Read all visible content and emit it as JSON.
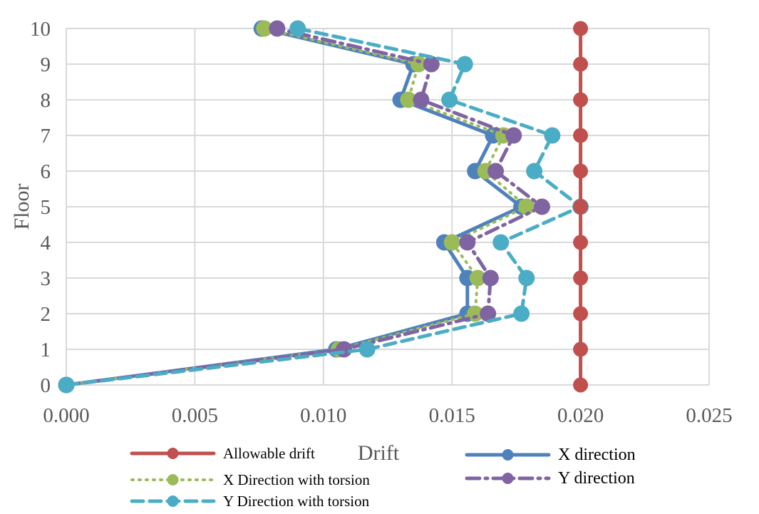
{
  "chart_data": {
    "type": "line",
    "xlabel": "Drift",
    "ylabel": "Floor",
    "xlim": [
      0,
      0.025
    ],
    "ylim": [
      0,
      10
    ],
    "x_ticks": [
      "0.000",
      "0.005",
      "0.010",
      "0.015",
      "0.020",
      "0.025"
    ],
    "y_ticks": [
      "0",
      "1",
      "2",
      "3",
      "4",
      "5",
      "6",
      "7",
      "8",
      "9",
      "10"
    ],
    "grid": true,
    "legend_position": "bottom",
    "series": [
      {
        "name": "Allowable drift",
        "color": "#C0504D",
        "dash": "solid",
        "x": [
          0.02,
          0.02,
          0.02,
          0.02,
          0.02,
          0.02,
          0.02,
          0.02,
          0.02,
          0.02,
          0.02
        ],
        "y": [
          0,
          1,
          2,
          3,
          4,
          5,
          6,
          7,
          8,
          9,
          10
        ]
      },
      {
        "name": "X direction",
        "color": "#4F81BD",
        "dash": "solid",
        "x": [
          0.0,
          0.0105,
          0.0156,
          0.0156,
          0.0147,
          0.0177,
          0.0159,
          0.0166,
          0.013,
          0.0135,
          0.0076
        ],
        "y": [
          0,
          1,
          2,
          3,
          4,
          5,
          6,
          7,
          8,
          9,
          10
        ]
      },
      {
        "name": "X Direction with torsion",
        "color": "#9BBB59",
        "dash": "dot",
        "x": [
          0.0,
          0.0106,
          0.0159,
          0.016,
          0.015,
          0.0179,
          0.0163,
          0.017,
          0.0133,
          0.0137,
          0.0077
        ],
        "y": [
          0,
          1,
          2,
          3,
          4,
          5,
          6,
          7,
          8,
          9,
          10
        ]
      },
      {
        "name": "Y direction",
        "color": "#8064A2",
        "dash": "dashdot",
        "x": [
          0.0,
          0.0108,
          0.0164,
          0.0165,
          0.0156,
          0.0185,
          0.0167,
          0.0174,
          0.0138,
          0.0142,
          0.0082
        ],
        "y": [
          0,
          1,
          2,
          3,
          4,
          5,
          6,
          7,
          8,
          9,
          10
        ]
      },
      {
        "name": "Y Direction with torsion",
        "color": "#4BACC6",
        "dash": "dash",
        "x": [
          0.0,
          0.0117,
          0.0177,
          0.0179,
          0.0169,
          0.02,
          0.0182,
          0.0189,
          0.0149,
          0.0155,
          0.009
        ],
        "y": [
          0,
          1,
          2,
          3,
          4,
          5,
          6,
          7,
          8,
          9,
          10
        ]
      }
    ]
  }
}
